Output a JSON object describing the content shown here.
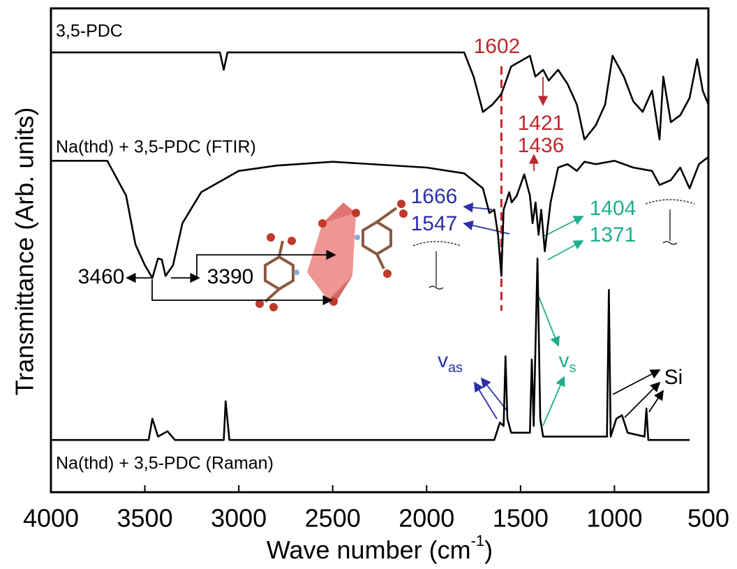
{
  "chart_data": {
    "type": "line",
    "xlabel": {
      "text": "Wave number (cm",
      "sup": "-1",
      "after": ")"
    },
    "ylabel": "Transmittance (Arb. units)",
    "xlim": [
      4000,
      500
    ],
    "ylim": [
      0,
      100
    ],
    "xticks": [
      4000,
      3500,
      3000,
      2500,
      2000,
      1500,
      1000,
      500
    ],
    "series": [
      {
        "name": "3,5-PDC",
        "color": "#000000",
        "x": [
          4000,
          3100,
          3080,
          3060,
          1800,
          1750,
          1700,
          1650,
          1602,
          1550,
          1450,
          1421,
          1380,
          1350,
          1300,
          1250,
          1200,
          1160,
          1100,
          1050,
          1010,
          950,
          900,
          850,
          800,
          760,
          740,
          700,
          650,
          600,
          560,
          530,
          500
        ],
        "values": [
          90.9,
          90.9,
          87.3,
          90.9,
          90.9,
          85.9,
          78.6,
          80.1,
          82.3,
          88.0,
          90.2,
          85.9,
          87.3,
          85.1,
          87.3,
          84.4,
          80.1,
          72.9,
          75.8,
          80.1,
          90.2,
          85.9,
          80.8,
          78.6,
          83.0,
          72.9,
          85.9,
          76.5,
          77.9,
          81.5,
          89.5,
          83.0,
          80.1
        ]
      },
      {
        "name": "Na(thd) + 3,5-PDC (FTIR)",
        "color": "#000000",
        "x": [
          4000,
          3700,
          3600,
          3550,
          3500,
          3460,
          3430,
          3410,
          3390,
          3350,
          3300,
          3200,
          3000,
          2800,
          2500,
          2000,
          1800,
          1700,
          1666,
          1640,
          1620,
          1602,
          1590,
          1560,
          1547,
          1520,
          1480,
          1450,
          1436,
          1420,
          1404,
          1390,
          1371,
          1340,
          1300,
          1250,
          1200,
          1160,
          1100,
          1000,
          900,
          800,
          760,
          700,
          650,
          600,
          550,
          500
        ],
        "values": [
          68.5,
          68.5,
          61.3,
          51.2,
          46.9,
          44.3,
          48.3,
          48.1,
          44.7,
          46.9,
          55.6,
          62.0,
          66.4,
          67.5,
          68.3,
          67.1,
          65.9,
          62.8,
          57.7,
          58.4,
          53.2,
          44.7,
          58.4,
          62.0,
          59.9,
          61.3,
          65.7,
          61.3,
          55.6,
          59.9,
          53.2,
          58.4,
          49.8,
          59.9,
          67.1,
          67.8,
          66.4,
          68.3,
          67.8,
          68.5,
          67.1,
          66.4,
          63.5,
          64.5,
          67.1,
          62.8,
          67.8,
          69.3
        ]
      },
      {
        "name": "Na(thd) + 3,5-PDC (Raman)",
        "color": "#000000",
        "x": [
          4000,
          3480,
          3460,
          3430,
          3380,
          3340,
          3080,
          3070,
          3050,
          1640,
          1610,
          1590,
          1580,
          1570,
          1550,
          1450,
          1440,
          1430,
          1410,
          1395,
          1380,
          1040,
          1030,
          1020,
          990,
          960,
          930,
          840,
          830,
          820,
          600
        ],
        "values": [
          10.8,
          10.8,
          15.2,
          11.5,
          12.6,
          10.8,
          10.8,
          18.8,
          10.8,
          10.8,
          14.4,
          13.7,
          28.1,
          15.2,
          12.3,
          12.3,
          27.4,
          13.7,
          48.3,
          15.2,
          11.5,
          11.5,
          41.8,
          11.5,
          15.2,
          15.9,
          12.3,
          11.5,
          17.3,
          10.8,
          10.8
        ]
      }
    ],
    "vline": {
      "x": 1602,
      "color": "#c0272d",
      "style": "dashed"
    },
    "annotations": [
      {
        "text": "1602",
        "color": "#c0272d"
      },
      {
        "text": "1421",
        "color": "#c0272d"
      },
      {
        "text": "1436",
        "color": "#c0272d"
      },
      {
        "text": "1666",
        "color": "#2b2fa8"
      },
      {
        "text": "1547",
        "color": "#2b2fa8"
      },
      {
        "text": "1404",
        "color": "#1fae8c"
      },
      {
        "text": "1371",
        "color": "#1fae8c"
      },
      {
        "text": "3460",
        "color": "#000000"
      },
      {
        "text": "3390",
        "color": "#000000"
      },
      {
        "text": "v",
        "sub": "as",
        "color": "#2b2fa8"
      },
      {
        "text": "v",
        "sub": "s",
        "color": "#1fae8c"
      },
      {
        "text": "Si",
        "color": "#000000"
      }
    ]
  }
}
